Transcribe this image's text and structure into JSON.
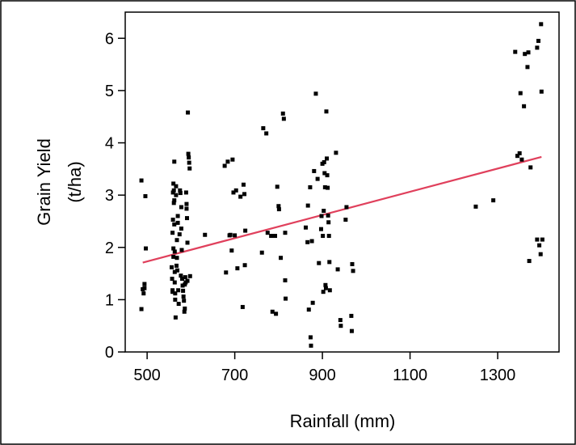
{
  "chart_data": {
    "type": "scatter",
    "xlabel": "Rainfall (mm)",
    "ylabel_line1": "Grain Yield",
    "ylabel_line2": "(t/ha)",
    "xlim": [
      450,
      1440
    ],
    "ylim": [
      0,
      6.5
    ],
    "x_ticks": [
      500,
      700,
      900,
      1100,
      1300
    ],
    "y_ticks": [
      0,
      1,
      2,
      3,
      4,
      5,
      6
    ],
    "grid": false,
    "colors": {
      "points": "#000000",
      "trend": "#e0405c",
      "frame": "#000000"
    },
    "trend_line": {
      "x": [
        490,
        1400
      ],
      "y": [
        1.71,
        3.73
      ]
    },
    "series": [
      {
        "points": [
          [
            487,
            3.28
          ],
          [
            487,
            0.82
          ],
          [
            490,
            1.2
          ],
          [
            492,
            1.12
          ],
          [
            494,
            1.3
          ],
          [
            494,
            1.22
          ],
          [
            496,
            2.98
          ],
          [
            497,
            1.98
          ],
          [
            556,
            1.62
          ],
          [
            557,
            1.4
          ],
          [
            558,
            1.18
          ],
          [
            558,
            1.15
          ],
          [
            558,
            2.28
          ],
          [
            559,
            2.53
          ],
          [
            559,
            3.05
          ],
          [
            560,
            3.22
          ],
          [
            560,
            1.82
          ],
          [
            560,
            1.98
          ],
          [
            561,
            2.85
          ],
          [
            561,
            3.09
          ],
          [
            562,
            3.64
          ],
          [
            562,
            2.44
          ],
          [
            562,
            2.9
          ],
          [
            563,
            1.92
          ],
          [
            563,
            1.53
          ],
          [
            563,
            1.33
          ],
          [
            564,
            1.12
          ],
          [
            564,
            1.0
          ],
          [
            565,
            0.66
          ],
          [
            566,
            3.0
          ],
          [
            566,
            3.17
          ],
          [
            567,
            1.65
          ],
          [
            568,
            2.14
          ],
          [
            568,
            1.8
          ],
          [
            569,
            1.56
          ],
          [
            570,
            2.6
          ],
          [
            570,
            2.47
          ],
          [
            571,
            1.18
          ],
          [
            572,
            0.92
          ],
          [
            574,
            2.25
          ],
          [
            575,
            3.09
          ],
          [
            576,
            3.04
          ],
          [
            577,
            1.46
          ],
          [
            578,
            2.77
          ],
          [
            578,
            2.36
          ],
          [
            579,
            1.95
          ],
          [
            580,
            1.4
          ],
          [
            581,
            1.27
          ],
          [
            582,
            1.17
          ],
          [
            583,
            1.06
          ],
          [
            584,
            0.98
          ],
          [
            585,
            0.77
          ],
          [
            586,
            0.83
          ],
          [
            586,
            1.29
          ],
          [
            587,
            1.43
          ],
          [
            588,
            1.33
          ],
          [
            589,
            3.05
          ],
          [
            590,
            2.83
          ],
          [
            590,
            2.74
          ],
          [
            591,
            2.56
          ],
          [
            592,
            2.09
          ],
          [
            592,
            1.36
          ],
          [
            593,
            4.58
          ],
          [
            594,
            3.79
          ],
          [
            595,
            3.72
          ],
          [
            596,
            3.62
          ],
          [
            597,
            3.51
          ],
          [
            598,
            1.45
          ],
          [
            632,
            2.24
          ],
          [
            677,
            3.56
          ],
          [
            680,
            1.52
          ],
          [
            684,
            3.64
          ],
          [
            688,
            2.23
          ],
          [
            690,
            2.24
          ],
          [
            693,
            1.94
          ],
          [
            695,
            3.68
          ],
          [
            697,
            3.05
          ],
          [
            700,
            2.23
          ],
          [
            703,
            3.09
          ],
          [
            706,
            1.6
          ],
          [
            713,
            2.97
          ],
          [
            718,
            0.86
          ],
          [
            720,
            3.2
          ],
          [
            722,
            3.02
          ],
          [
            723,
            1.66
          ],
          [
            724,
            2.32
          ],
          [
            762,
            1.9
          ],
          [
            765,
            4.28
          ],
          [
            772,
            4.18
          ],
          [
            775,
            2.28
          ],
          [
            783,
            2.22
          ],
          [
            786,
            0.77
          ],
          [
            792,
            2.22
          ],
          [
            794,
            0.73
          ],
          [
            797,
            3.16
          ],
          [
            800,
            2.79
          ],
          [
            801,
            2.73
          ],
          [
            805,
            1.8
          ],
          [
            810,
            4.56
          ],
          [
            812,
            4.46
          ],
          [
            815,
            1.37
          ],
          [
            815,
            2.28
          ],
          [
            816,
            1.02
          ],
          [
            862,
            2.38
          ],
          [
            866,
            2.1
          ],
          [
            867,
            2.8
          ],
          [
            869,
            0.81
          ],
          [
            872,
            3.15
          ],
          [
            873,
            0.28
          ],
          [
            874,
            0.12
          ],
          [
            876,
            2.12
          ],
          [
            878,
            0.94
          ],
          [
            881,
            3.46
          ],
          [
            885,
            4.94
          ],
          [
            889,
            3.31
          ],
          [
            892,
            1.7
          ],
          [
            897,
            2.35
          ],
          [
            898,
            2.6
          ],
          [
            900,
            3.6
          ],
          [
            901,
            2.22
          ],
          [
            902,
            1.15
          ],
          [
            903,
            2.7
          ],
          [
            904,
            3.63
          ],
          [
            905,
            3.42
          ],
          [
            906,
            3.15
          ],
          [
            907,
            1.28
          ],
          [
            908,
            1.22
          ],
          [
            909,
            4.6
          ],
          [
            910,
            3.7
          ],
          [
            911,
            3.38
          ],
          [
            912,
            3.14
          ],
          [
            913,
            2.61
          ],
          [
            914,
            2.48
          ],
          [
            915,
            2.22
          ],
          [
            916,
            1.72
          ],
          [
            917,
            1.18
          ],
          [
            931,
            3.81
          ],
          [
            935,
            1.58
          ],
          [
            941,
            0.61
          ],
          [
            942,
            0.5
          ],
          [
            953,
            2.53
          ],
          [
            955,
            2.77
          ],
          [
            966,
            0.69
          ],
          [
            967,
            0.4
          ],
          [
            968,
            1.68
          ],
          [
            970,
            1.55
          ],
          [
            1250,
            2.78
          ],
          [
            1290,
            2.9
          ],
          [
            1340,
            5.74
          ],
          [
            1345,
            3.75
          ],
          [
            1350,
            3.8
          ],
          [
            1352,
            4.95
          ],
          [
            1355,
            3.68
          ],
          [
            1360,
            4.7
          ],
          [
            1362,
            5.7
          ],
          [
            1368,
            5.45
          ],
          [
            1370,
            5.73
          ],
          [
            1372,
            1.74
          ],
          [
            1375,
            3.53
          ],
          [
            1390,
            5.82
          ],
          [
            1390,
            2.15
          ],
          [
            1393,
            5.95
          ],
          [
            1395,
            2.04
          ],
          [
            1398,
            1.87
          ],
          [
            1399,
            6.27
          ],
          [
            1400,
            4.98
          ],
          [
            1402,
            2.15
          ]
        ]
      }
    ]
  }
}
